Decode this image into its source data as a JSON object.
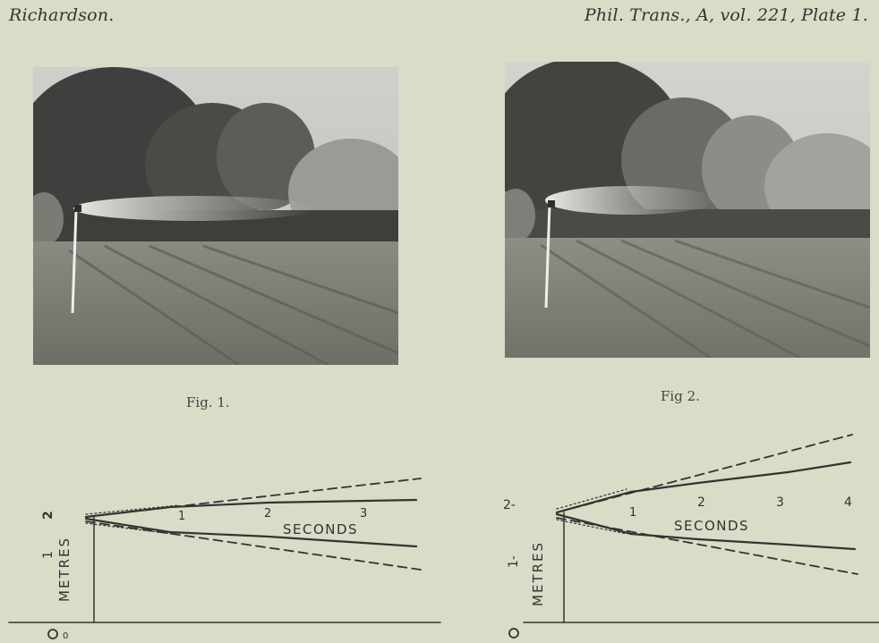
{
  "header": {
    "author": "Richardson.",
    "citation": "Phil. Trans., A, vol. 221, Plate 1."
  },
  "figures": [
    {
      "caption": "Fig. 1."
    },
    {
      "caption": "Fig 2."
    }
  ],
  "graphs": [
    {
      "xlabel": "SECONDS",
      "ylabel": "METRES",
      "x_ticks": [
        "1",
        "2",
        "3"
      ],
      "y_ticks": [
        "0",
        "1",
        "2"
      ]
    },
    {
      "xlabel": "SECONDS",
      "ylabel": "METRES",
      "x_ticks": [
        "1",
        "2",
        "3",
        "4"
      ],
      "y_ticks": [
        "0",
        "1-",
        "2-"
      ]
    }
  ],
  "colors": {
    "paper": "#d9dcc6",
    "ink": "#333333"
  }
}
